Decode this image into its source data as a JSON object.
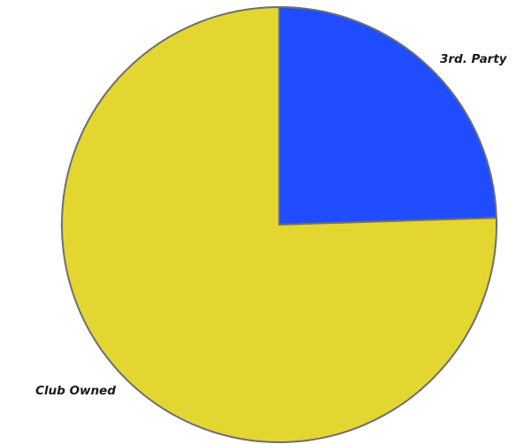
{
  "chart_data": {
    "type": "pie",
    "title": "",
    "slices": [
      {
        "label": "3rd. Party",
        "value": 24.5,
        "color": "#1f4dff"
      },
      {
        "label": "Club Owned",
        "value": 75.5,
        "color": "#e3d631"
      }
    ],
    "start_angle_deg": 0,
    "direction": "clockwise",
    "edge_color": "#6e6e6e"
  }
}
